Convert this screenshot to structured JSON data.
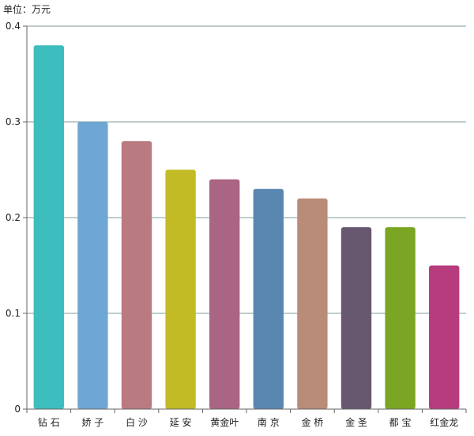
{
  "chart_data": {
    "type": "bar",
    "unit_label": "单位：万元",
    "categories": [
      "钻 石",
      "娇 子",
      "白 沙",
      "延 安",
      "黄金叶",
      "南 京",
      "金 桥",
      "金 圣",
      "都 宝",
      "红金龙"
    ],
    "values": [
      0.38,
      0.3,
      0.28,
      0.25,
      0.24,
      0.23,
      0.22,
      0.19,
      0.19,
      0.15
    ],
    "colors": [
      "#3dbdbd",
      "#6ea6d4",
      "#b97a80",
      "#c2bb25",
      "#a96583",
      "#5a86b2",
      "#b98c78",
      "#67576f",
      "#7aa623",
      "#b63c7e"
    ],
    "ylim": [
      0,
      0.4
    ],
    "yticks": [
      "0",
      "0.1",
      "0.2",
      "0.3",
      "0.4"
    ],
    "ytick_values": [
      0,
      0.1,
      0.2,
      0.3,
      0.4
    ],
    "grid": true,
    "grid_color": "#7f9b9b",
    "axis_color": "#666666",
    "title": "",
    "xlabel": "",
    "ylabel": ""
  }
}
